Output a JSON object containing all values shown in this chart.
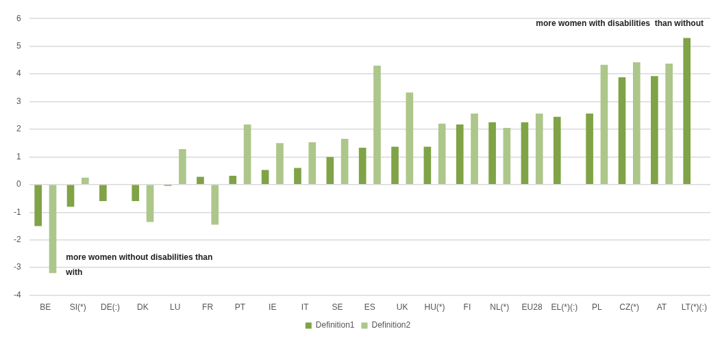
{
  "chart_data": {
    "type": "bar",
    "categories": [
      "BE",
      "SI(*)",
      "DE(:)",
      "DK",
      "LU",
      "FR",
      "PT",
      "IE",
      "IT",
      "SE",
      "ES",
      "UK",
      "HU(*)",
      "FI",
      "NL(*)",
      "EU28",
      "EL(*)(:)",
      "PL",
      "CZ(*)",
      "AT",
      "LT(*)(:)"
    ],
    "series": [
      {
        "name": "Definition1",
        "color": "#7fa346",
        "values": [
          -1.5,
          -0.8,
          -0.6,
          -0.6,
          -0.05,
          0.28,
          0.32,
          0.53,
          0.6,
          1.0,
          1.33,
          1.37,
          1.37,
          2.17,
          2.25,
          2.25,
          2.45,
          2.57,
          3.88,
          3.92,
          5.3
        ]
      },
      {
        "name": "Definition2",
        "color": "#adc68a",
        "values": [
          -3.2,
          0.25,
          null,
          -1.35,
          1.28,
          -1.45,
          2.17,
          1.5,
          1.53,
          1.65,
          4.3,
          3.33,
          2.2,
          2.57,
          2.05,
          2.57,
          null,
          4.33,
          4.42,
          4.37,
          null
        ]
      }
    ],
    "ylim": [
      -4,
      6
    ],
    "yticks": [
      -4,
      -3,
      -2,
      -1,
      0,
      1,
      2,
      3,
      4,
      5,
      6
    ],
    "grid": "y",
    "legend": "bottom",
    "annotations": [
      "more women without disabilities than with",
      "more women with disabilities  than without"
    ]
  }
}
